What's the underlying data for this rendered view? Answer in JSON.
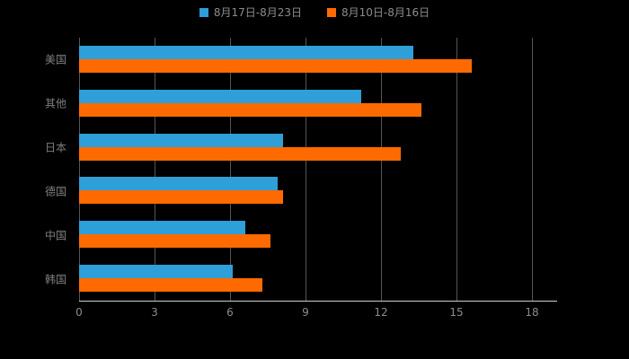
{
  "chart_data": {
    "type": "bar",
    "orientation": "horizontal",
    "title": "",
    "categories": [
      "美国",
      "其他",
      "日本",
      "德国",
      "中国",
      "韩国"
    ],
    "series": [
      {
        "name": "8月17日-8月23日",
        "color": "#2E9FD8",
        "values": [
          13.3,
          11.2,
          8.1,
          7.9,
          6.6,
          6.1
        ]
      },
      {
        "name": "8月10日-8月16日",
        "color": "#FF6A00",
        "values": [
          15.6,
          13.6,
          12.8,
          8.1,
          7.6,
          7.3
        ]
      }
    ],
    "xticks": [
      0,
      3,
      6,
      9,
      12,
      15,
      18
    ],
    "xlim": [
      0,
      19
    ],
    "xlabel": "",
    "ylabel": "",
    "legend_position": "top",
    "grid": true
  },
  "colors": {
    "background": "#000000",
    "legend_text": "#8c8c8c",
    "category_text": "#7f7f7f",
    "tick_text": "#8c8c8c",
    "gridline": "#565656",
    "axis_line": "#cfcfcf"
  }
}
